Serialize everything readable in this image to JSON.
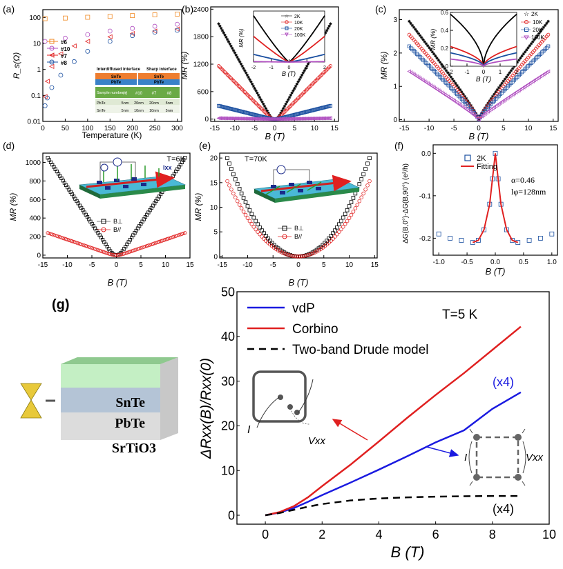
{
  "figure": {
    "panel_labels": [
      "(a)",
      "(b)",
      "(c)",
      "(d)",
      "(e)",
      "(f)",
      "(g)"
    ]
  },
  "chart_data": [
    {
      "id": "a",
      "type": "scatter",
      "xlabel": "Temperature (K)",
      "ylabel": "R_s(Ω)",
      "xlim": [
        0,
        310
      ],
      "xticks": [
        0,
        50,
        100,
        150,
        200,
        250,
        300
      ],
      "yscale": "log",
      "ylim": [
        0.01,
        200
      ],
      "yticks": [
        0.01,
        0.1,
        1,
        10,
        100
      ],
      "ytick_labels": [
        "0.01",
        "0.1",
        "1",
        "10",
        "100"
      ],
      "legend": [
        "#6",
        "#10",
        "#7",
        "#8"
      ],
      "legend_position": "left",
      "series": [
        {
          "name": "#6",
          "color": "#f08a24",
          "marker": "square",
          "x": [
            5,
            50,
            100,
            150,
            200,
            250,
            300
          ],
          "y": [
            90,
            95,
            102,
            110,
            118,
            126,
            135
          ]
        },
        {
          "name": "#10",
          "color": "#b04fc0",
          "marker": "circle",
          "x": [
            5,
            50,
            100,
            150,
            200,
            250,
            300
          ],
          "y": [
            12,
            16,
            22,
            30,
            38,
            46,
            55
          ]
        },
        {
          "name": "#7",
          "color": "#e02020",
          "marker": "triangle",
          "x": [
            5,
            10,
            20,
            40,
            70,
            100,
            150,
            200,
            250,
            300
          ],
          "y": [
            0.09,
            0.35,
            1.3,
            4,
            8,
            12,
            18,
            24,
            30,
            36
          ]
        },
        {
          "name": "#8",
          "color": "#1a4fa0",
          "marker": "circle",
          "x": [
            5,
            10,
            20,
            40,
            70,
            100,
            150,
            200,
            250,
            300
          ],
          "y": [
            0.04,
            0.08,
            0.2,
            0.6,
            2,
            5,
            12,
            20,
            27,
            32
          ]
        }
      ],
      "inset_table": {
        "headers": [
          "Interdiffused interface",
          "Sharp interface"
        ],
        "layers": [
          "SnTe",
          "PbTe",
          "SnTe",
          "PbTe"
        ],
        "row_label": "Sample number",
        "samples": [
          "#6",
          "#10",
          "#7",
          "#8"
        ],
        "rows": [
          {
            "label": "PbTe",
            "values": [
              "5nm",
              "20nm",
              "20nm",
              "5nm"
            ]
          },
          {
            "label": "SnTe",
            "values": [
              "5nm",
              "10nm",
              "10nm",
              "5nm"
            ]
          }
        ]
      }
    },
    {
      "id": "b",
      "type": "scatter",
      "xlabel": "B (T)",
      "ylabel": "MR (%)",
      "xlim": [
        -16,
        16
      ],
      "xticks": [
        -15,
        -10,
        -5,
        0,
        5,
        10,
        15
      ],
      "ylim": [
        -50,
        2450
      ],
      "yticks": [
        0,
        600,
        1200,
        1800,
        2400
      ],
      "series": [
        {
          "name": "2K",
          "color": "#000000",
          "marker": "star",
          "Bmax": 14,
          "MRmax": 2080,
          "shape": "linear"
        },
        {
          "name": "10K",
          "color": "#e02020",
          "marker": "circle",
          "Bmax": 14,
          "MRmax": 1160,
          "shape": "linear"
        },
        {
          "name": "20K",
          "color": "#1a4fa0",
          "marker": "square",
          "Bmax": 14,
          "MRmax": 290,
          "shape": "linear"
        },
        {
          "name": "100K",
          "color": "#b04fc0",
          "marker": "triangle",
          "Bmax": 14,
          "MRmax": 20,
          "shape": "linear"
        }
      ],
      "inset": {
        "xlabel": "B (T)",
        "ylabel": "MR (%)",
        "xlim": [
          -2,
          2
        ],
        "xticks": [
          -2,
          -1,
          0,
          1,
          2
        ],
        "legend": [
          "2K",
          "10K",
          "20K",
          "100K"
        ],
        "series": [
          {
            "color": "#000000",
            "Bmax": 2,
            "MRmax": 270
          },
          {
            "color": "#e02020",
            "Bmax": 2,
            "MRmax": 150
          },
          {
            "color": "#1a4fa0",
            "Bmax": 2,
            "MRmax": 45
          },
          {
            "color": "#b04fc0",
            "Bmax": 2,
            "MRmax": 3
          }
        ]
      }
    },
    {
      "id": "c",
      "type": "scatter",
      "xlabel": "B (T)",
      "ylabel": "MR (%)",
      "xlim": [
        -16,
        16
      ],
      "xticks": [
        -15,
        -10,
        -5,
        0,
        5,
        10,
        15
      ],
      "ylim": [
        -0.05,
        3.3
      ],
      "yticks": [
        0,
        1,
        2,
        3
      ],
      "series": [
        {
          "name": "2K",
          "color": "#000000",
          "marker": "star",
          "Bmax": 14,
          "MRmax": 2.95,
          "shape": "cusp"
        },
        {
          "name": "10K",
          "color": "#e02020",
          "marker": "circle",
          "Bmax": 14,
          "MRmax": 2.55,
          "shape": "cusp"
        },
        {
          "name": "20K",
          "color": "#1a4fa0",
          "marker": "square",
          "Bmax": 14,
          "MRmax": 2.2,
          "shape": "cusp"
        },
        {
          "name": "100K",
          "color": "#b04fc0",
          "marker": "triangle",
          "Bmax": 14,
          "MRmax": 1.45,
          "shape": "cusp"
        }
      ],
      "inset": {
        "xlabel": "B (T)",
        "ylabel": "MR (%)",
        "xlim": [
          -2,
          2
        ],
        "xticks": [
          -2,
          -1,
          0,
          1,
          2
        ],
        "ylim": [
          0,
          0.6
        ],
        "yticks": [
          0,
          0.2,
          0.4,
          0.6
        ],
        "ytick_labels": [
          "0.0",
          "0.2",
          "0.4",
          "0.6"
        ],
        "legend": [
          "2K",
          "10K",
          "20K",
          "100K"
        ],
        "series": [
          {
            "color": "#000000",
            "Bmax": 2,
            "MRmax": 0.58
          },
          {
            "color": "#e02020",
            "Bmax": 2,
            "MRmax": 0.22
          },
          {
            "color": "#1a4fa0",
            "Bmax": 2,
            "MRmax": 0.15
          },
          {
            "color": "#b04fc0",
            "Bmax": 2,
            "MRmax": 0.08
          }
        ]
      }
    },
    {
      "id": "d",
      "type": "scatter",
      "annotation": "T=6K",
      "xlabel": "B (T)",
      "ylabel": "MR (%)",
      "xlim": [
        -15,
        15
      ],
      "xticks": [
        -15,
        -10,
        -5,
        0,
        5,
        10,
        15
      ],
      "ylim": [
        -30,
        1100
      ],
      "yticks": [
        0,
        200,
        400,
        600,
        800,
        1000
      ],
      "legend": [
        "B⊥",
        "B//"
      ],
      "series": [
        {
          "name": "B⊥",
          "color": "#000000",
          "marker": "square",
          "Bmax": 14,
          "MRmax": 1050,
          "shape": "linear"
        },
        {
          "name": "B//",
          "color": "#e02020",
          "marker": "circle",
          "Bmax": 14,
          "MRmax": 240,
          "shape": "linear"
        }
      ],
      "current_label": "Ixx"
    },
    {
      "id": "e",
      "type": "scatter",
      "annotation": "T=70K",
      "xlabel": "B (T)",
      "ylabel": "MR (%)",
      "xlim": [
        -15.5,
        15.5
      ],
      "xticks": [
        -15,
        -10,
        -5,
        0,
        5,
        10,
        15
      ],
      "ylim": [
        -0.3,
        21
      ],
      "yticks": [
        0,
        5,
        10,
        15,
        20
      ],
      "legend": [
        "B⊥",
        "B//"
      ],
      "series": [
        {
          "name": "B⊥",
          "color": "#000000",
          "marker": "square",
          "Bmax": 14,
          "MRmax": 20,
          "shape": "parabola"
        },
        {
          "name": "B//",
          "color": "#e02020",
          "marker": "circle",
          "Bmax": 14,
          "MRmax": 15.3,
          "shape": "parabola"
        }
      ]
    },
    {
      "id": "f",
      "type": "scatter",
      "xlabel": "B (T)",
      "ylabel": "ΔG(B,0°)-ΔG(B,90°) (e²/h)",
      "xlim": [
        -1.1,
        1.1
      ],
      "xticks": [
        -1.0,
        -0.5,
        0.0,
        0.5,
        1.0
      ],
      "xtick_labels": [
        "-1.0",
        "-0.5",
        "0.0",
        "0.5",
        "1.0"
      ],
      "ylim": [
        -0.24,
        0.02
      ],
      "yticks": [
        0.0,
        -0.1,
        -0.2
      ],
      "ytick_labels": [
        "0.0",
        "-0.1",
        "-0.2"
      ],
      "legend": [
        "2K",
        "Fitting"
      ],
      "params": [
        "α=0.46",
        "lφ=128nm"
      ],
      "series": [
        {
          "name": "2K",
          "color": "#1a4fa0",
          "marker": "square",
          "x": [
            -1.0,
            -0.8,
            -0.6,
            -0.4,
            -0.3,
            -0.2,
            -0.1,
            -0.05,
            0.0,
            0.05,
            0.1,
            0.2,
            0.3,
            0.4,
            0.6,
            0.8,
            1.0
          ],
          "y": [
            -0.19,
            -0.2,
            -0.205,
            -0.21,
            -0.205,
            -0.18,
            -0.12,
            -0.06,
            0.0,
            -0.06,
            -0.12,
            -0.18,
            -0.205,
            -0.21,
            -0.205,
            -0.2,
            -0.19
          ]
        },
        {
          "name": "Fitting",
          "color": "#e02020",
          "marker": "line",
          "x": [
            -0.4,
            -0.3,
            -0.2,
            -0.1,
            -0.05,
            0.0,
            0.05,
            0.1,
            0.2,
            0.3,
            0.4
          ],
          "y": [
            -0.21,
            -0.205,
            -0.18,
            -0.12,
            -0.06,
            0.0,
            -0.06,
            -0.12,
            -0.18,
            -0.205,
            -0.21
          ]
        }
      ]
    },
    {
      "id": "g",
      "type": "line",
      "annotation": "T=5 K",
      "xlabel": "B (T)",
      "ylabel": "ΔRxx(B)/Rxx(0)",
      "xlim": [
        -1,
        10
      ],
      "xticks": [
        0,
        2,
        4,
        6,
        8,
        10
      ],
      "ylim": [
        -2,
        50
      ],
      "yticks": [
        0,
        10,
        20,
        30,
        40,
        50
      ],
      "legend": [
        "vdP",
        "Corbino",
        "Two-band Drude model"
      ],
      "legend_position": "top-left",
      "series": [
        {
          "name": "vdP",
          "color": "#1a1ae0",
          "style": "solid",
          "x": [
            0,
            0.5,
            1,
            1.5,
            2,
            3,
            4,
            5,
            6,
            7,
            8,
            9
          ],
          "y": [
            0,
            0.6,
            1.6,
            3.0,
            4.5,
            7.3,
            10.2,
            13.2,
            16.3,
            19.0,
            23.8,
            27.5
          ]
        },
        {
          "name": "Corbino",
          "color": "#e02020",
          "style": "solid",
          "x": [
            0,
            0.5,
            1,
            1.5,
            2,
            3,
            4,
            5,
            6,
            7,
            8,
            9
          ],
          "y": [
            0,
            0.7,
            2.0,
            4.0,
            6.5,
            11.3,
            16.5,
            21.8,
            26.9,
            31.8,
            37.0,
            42.2
          ]
        },
        {
          "name": "Two-band Drude model",
          "color": "#000000",
          "style": "dashed",
          "x": [
            0,
            0.5,
            1,
            1.5,
            2,
            3,
            4,
            5,
            6,
            7,
            8,
            9
          ],
          "y": [
            0,
            0.5,
            1.2,
            1.9,
            2.5,
            3.3,
            3.75,
            4.0,
            4.15,
            4.25,
            4.3,
            4.3
          ]
        }
      ],
      "annotations": [
        "(x4)",
        "(x4)"
      ],
      "insets": {
        "corbino_labels": [
          "I",
          "Vxx"
        ],
        "vdp_labels": [
          "I",
          "Vxx"
        ]
      },
      "stack_layers": [
        "SnTe",
        "PbTe",
        "SrTiO3"
      ]
    }
  ]
}
